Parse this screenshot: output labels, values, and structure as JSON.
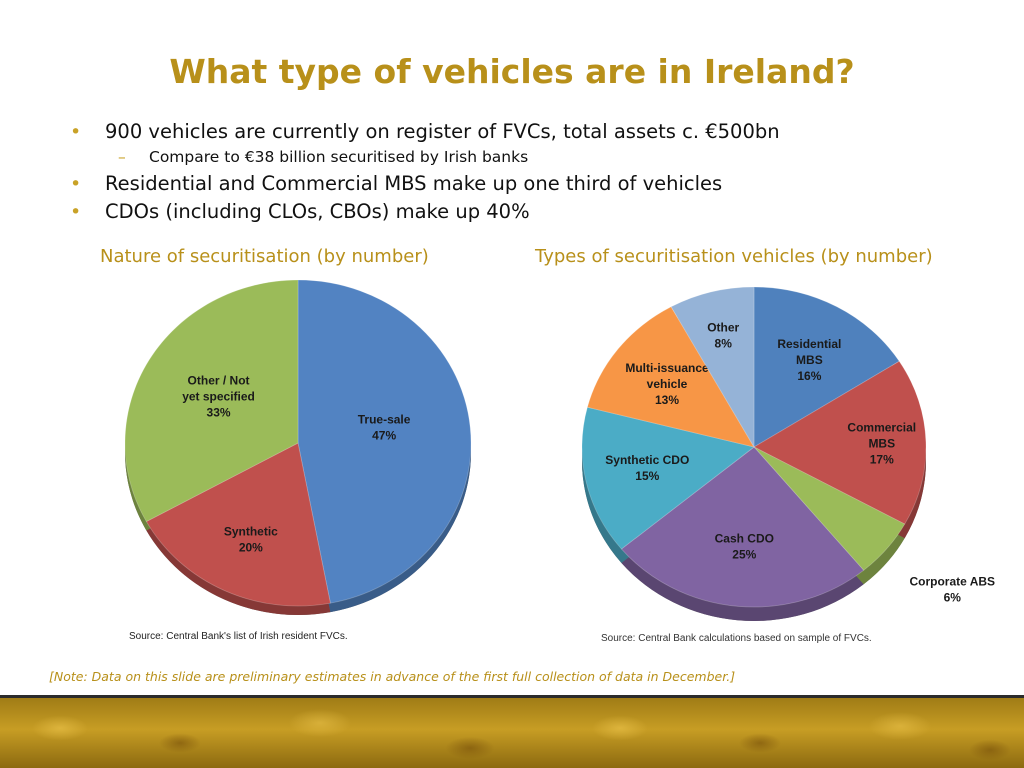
{
  "slide": {
    "title": "What type of vehicles are in Ireland?",
    "bullets": [
      "900 vehicles are currently on register of FVCs, total assets c. €500bn",
      "Residential and Commercial MBS make up one third of vehicles",
      "CDOs (including CLOs, CBOs) make up 40%"
    ],
    "sub_bullets": [
      "Compare to €38 billion securitised by Irish banks"
    ],
    "bullet_marker": "•",
    "sub_marker": "–",
    "note": "[Note: Data on this slide are preliminary estimates in advance of the first full collection of data in December.]",
    "accent_color": "#b8901a"
  },
  "chart_data": [
    {
      "type": "pie",
      "title": "Nature of securitisation (by number)",
      "source": "Source: Central Bank's list of Irish resident FVCs.",
      "slices": [
        {
          "label": [
            "True-sale",
            "47%"
          ],
          "value": 47,
          "color": "#5283c2"
        },
        {
          "label": [
            "Synthetic",
            "20%"
          ],
          "value": 20,
          "color": "#c0504d"
        },
        {
          "label": [
            "Other / Not",
            "yet specified",
            "33%"
          ],
          "value": 33,
          "color": "#9bbb59"
        }
      ]
    },
    {
      "type": "pie",
      "title": "Types of securitisation vehicles (by number)",
      "source": "Source: Central Bank calculations based on sample of FVCs.",
      "slices": [
        {
          "label": [
            "Residential",
            "MBS",
            "16%"
          ],
          "value": 16,
          "color": "#4f81bd"
        },
        {
          "label": [
            "Commercial",
            "MBS",
            "17%"
          ],
          "value": 17,
          "color": "#c0504d"
        },
        {
          "label": [
            "Corporate ABS",
            "6%"
          ],
          "value": 6,
          "color": "#9bbb59"
        },
        {
          "label": [
            "Cash CDO",
            "25%"
          ],
          "value": 25,
          "color": "#8064a2"
        },
        {
          "label": [
            "Synthetic CDO",
            "15%"
          ],
          "value": 15,
          "color": "#4bacc6"
        },
        {
          "label": [
            "Multi-issuance",
            "vehicle",
            "13%"
          ],
          "value": 13,
          "color": "#f79646"
        },
        {
          "label": [
            "Other",
            "8%"
          ],
          "value": 8,
          "color": "#95b3d7"
        }
      ]
    }
  ]
}
